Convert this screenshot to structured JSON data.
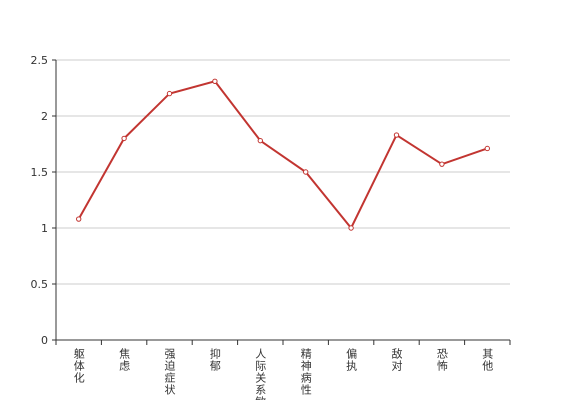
{
  "chart_data": {
    "type": "line",
    "categories": [
      "躯体化",
      "焦虑",
      "强迫症状",
      "抑郁",
      "人际关系敏感",
      "精神病性",
      "偏执",
      "敌对",
      "恐怖",
      "其他"
    ],
    "series": [
      {
        "color": "#c23531",
        "values": [
          1.08,
          1.8,
          2.2,
          2.31,
          1.78,
          1.5,
          1.0,
          1.83,
          1.57,
          1.71
        ]
      }
    ],
    "ylim": [
      0,
      2.5
    ],
    "yticks": [
      0,
      0.5,
      1,
      1.5,
      2,
      2.5
    ],
    "grid": true
  }
}
